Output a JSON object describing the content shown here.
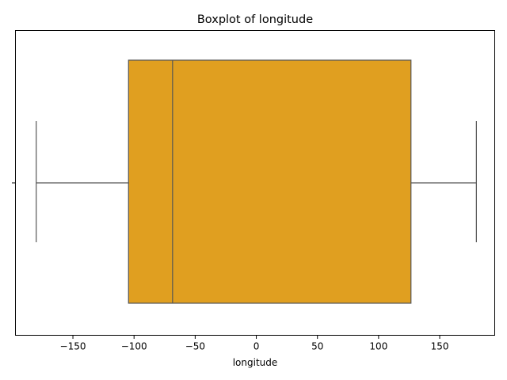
{
  "chart_data": {
    "type": "boxplot",
    "title": "Boxplot of longitude",
    "xlabel": "longitude",
    "ylabel": "",
    "orientation": "horizontal",
    "xlim": [
      -197,
      195
    ],
    "x_ticks": [
      -150,
      -100,
      -50,
      0,
      50,
      100,
      150
    ],
    "x_tick_labels": [
      "−150",
      "−100",
      "−50",
      "0",
      "50",
      "100",
      "150"
    ],
    "box": {
      "whisker_low": -180,
      "q1": -104.5,
      "median": -68.5,
      "q3": 126.5,
      "whisker_high": 180
    },
    "box_color": "#e09f20",
    "line_color": "#555555",
    "grid": false
  }
}
